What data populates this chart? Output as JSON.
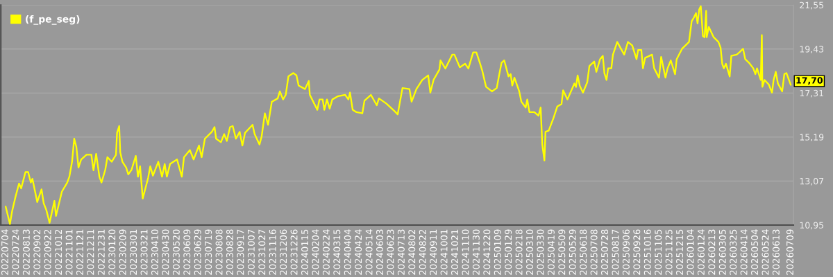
{
  "chart_data": {
    "type": "line",
    "x": [
      "2022-07-04",
      "2022-07-12",
      "2022-07-16",
      "2022-07-22",
      "2022-07-29",
      "2022-08-02",
      "2022-08-10",
      "2022-08-15",
      "2022-08-20",
      "2022-08-23",
      "2022-09-01",
      "2022-09-09",
      "2022-09-13",
      "2022-09-18",
      "2022-09-24",
      "2022-10-03",
      "2022-10-06",
      "2022-10-17",
      "2022-10-27",
      "2022-10-31",
      "2022-11-05",
      "2022-11-09",
      "2022-11-13",
      "2022-11-17",
      "2022-11-22",
      "2022-12-02",
      "2022-12-11",
      "2022-12-15",
      "2022-12-20",
      "2022-12-26",
      "2022-12-30",
      "2023-01-06",
      "2023-01-10",
      "2023-01-18",
      "2023-01-26",
      "2023-01-28",
      "2023-02-01",
      "2023-02-03",
      "2023-02-07",
      "2023-02-14",
      "2023-02-18",
      "2023-02-24",
      "2023-03-04",
      "2023-03-08",
      "2023-03-12",
      "2023-03-17",
      "2023-03-27",
      "2023-03-31",
      "2023-04-05",
      "2023-04-15",
      "2023-04-22",
      "2023-04-27",
      "2023-05-01",
      "2023-05-07",
      "2023-05-20",
      "2023-05-29",
      "2023-06-02",
      "2023-06-13",
      "2023-06-20",
      "2023-06-30",
      "2023-07-05",
      "2023-07-11",
      "2023-07-24",
      "2023-07-29",
      "2023-08-01",
      "2023-08-10",
      "2023-08-16",
      "2023-08-21",
      "2023-08-27",
      "2023-09-01",
      "2023-09-07",
      "2023-09-14",
      "2023-09-19",
      "2023-09-24",
      "2023-10-08",
      "2023-10-12",
      "2023-10-21",
      "2023-10-25",
      "2023-10-31",
      "2023-11-06",
      "2023-11-13",
      "2023-11-24",
      "2023-11-28",
      "2023-12-04",
      "2023-12-09",
      "2023-12-14",
      "2023-12-23",
      "2023-12-29",
      "2024-01-02",
      "2024-01-14",
      "2024-01-21",
      "2024-01-23",
      "2024-02-06",
      "2024-02-10",
      "2024-02-16",
      "2024-02-19",
      "2024-02-24",
      "2024-02-29",
      "2024-03-05",
      "2024-03-16",
      "2024-03-29",
      "2024-04-04",
      "2024-04-07",
      "2024-04-12",
      "2024-04-19",
      "2024-04-30",
      "2024-05-04",
      "2024-05-16",
      "2024-05-27",
      "2024-05-31",
      "2024-06-14",
      "2024-06-29",
      "2024-07-05",
      "2024-07-14",
      "2024-07-27",
      "2024-07-31",
      "2024-08-09",
      "2024-08-20",
      "2024-08-31",
      "2024-09-04",
      "2024-09-10",
      "2024-09-21",
      "2024-09-23",
      "2024-10-02",
      "2024-10-15",
      "2024-10-19",
      "2024-10-29",
      "2024-11-08",
      "2024-11-14",
      "2024-11-23",
      "2024-11-29",
      "2024-12-06",
      "2024-12-10",
      "2024-12-17",
      "2024-12-28",
      "2025-01-06",
      "2025-01-10",
      "2025-01-15",
      "2025-01-20",
      "2025-01-28",
      "2025-02-01",
      "2025-02-04",
      "2025-02-08",
      "2025-02-17",
      "2025-02-21",
      "2025-03-01",
      "2025-03-04",
      "2025-03-08",
      "2025-03-17",
      "2025-03-25",
      "2025-03-29",
      "2025-04-01",
      "2025-04-05",
      "2025-04-07",
      "2025-04-13",
      "2025-04-22",
      "2025-04-29",
      "2025-05-07",
      "2025-05-10",
      "2025-05-18",
      "2025-05-31",
      "2025-06-03",
      "2025-06-06",
      "2025-06-10",
      "2025-06-16",
      "2025-06-24",
      "2025-06-28",
      "2025-07-07",
      "2025-07-11",
      "2025-07-18",
      "2025-07-23",
      "2025-07-26",
      "2025-07-30",
      "2025-08-02",
      "2025-08-08",
      "2025-08-11",
      "2025-08-19",
      "2025-09-01",
      "2025-09-08",
      "2025-09-16",
      "2025-09-24",
      "2025-09-27",
      "2025-10-03",
      "2025-10-06",
      "2025-10-10",
      "2025-10-23",
      "2025-10-27",
      "2025-11-05",
      "2025-11-09",
      "2025-11-17",
      "2025-11-21",
      "2025-11-27",
      "2025-12-05",
      "2025-12-08",
      "2025-12-18",
      "2025-12-31",
      "2026-01-05",
      "2026-01-09",
      "2026-01-13",
      "2026-01-16",
      "2026-01-19",
      "2026-01-22",
      "2026-01-26",
      "2026-01-29",
      "2026-02-01",
      "2026-02-02",
      "2026-02-06",
      "2026-02-15",
      "2026-02-24",
      "2026-02-28",
      "2026-03-03",
      "2026-03-06",
      "2026-03-10",
      "2026-03-17",
      "2026-03-20",
      "2026-03-30",
      "2026-04-04",
      "2026-04-11",
      "2026-04-15",
      "2026-04-22",
      "2026-04-30",
      "2026-05-04",
      "2026-05-07",
      "2026-05-14",
      "2026-05-16",
      "2026-05-17",
      "2026-05-21",
      "2026-05-29",
      "2026-06-04",
      "2026-06-07",
      "2026-06-11",
      "2026-06-15",
      "2026-06-23",
      "2026-06-27",
      "2026-07-01",
      "2026-07-09"
    ],
    "series": [
      {
        "name": "(f_pe_seg)",
        "color": "#ffff00",
        "values": [
          11.84,
          11.0,
          11.61,
          12.27,
          12.95,
          12.72,
          13.5,
          13.5,
          13.0,
          13.18,
          12.06,
          12.67,
          12.0,
          11.67,
          11.06,
          12.11,
          11.39,
          12.56,
          13.0,
          13.28,
          14.0,
          15.11,
          14.72,
          13.72,
          14.11,
          14.34,
          14.34,
          13.59,
          14.38,
          13.28,
          13.0,
          13.61,
          14.22,
          14.0,
          14.33,
          15.39,
          15.72,
          14.45,
          14.0,
          13.72,
          13.39,
          13.61,
          14.28,
          13.28,
          13.78,
          12.23,
          13.22,
          13.78,
          13.33,
          14.0,
          13.28,
          13.89,
          13.28,
          13.89,
          14.11,
          13.28,
          14.22,
          14.56,
          14.11,
          14.78,
          14.22,
          15.11,
          15.44,
          15.67,
          15.11,
          14.94,
          15.33,
          15.0,
          15.67,
          15.72,
          15.11,
          15.44,
          14.78,
          15.39,
          15.78,
          15.33,
          14.83,
          15.22,
          16.33,
          15.78,
          16.89,
          17.05,
          17.39,
          17.0,
          17.22,
          18.11,
          18.27,
          18.16,
          17.67,
          17.5,
          17.89,
          17.22,
          16.5,
          17.0,
          17.0,
          16.5,
          17.0,
          16.56,
          17.0,
          17.16,
          17.22,
          17.0,
          17.33,
          16.5,
          16.39,
          16.33,
          16.94,
          17.22,
          16.72,
          17.05,
          16.8,
          16.44,
          16.28,
          17.55,
          17.5,
          16.89,
          17.5,
          17.94,
          18.16,
          17.33,
          17.94,
          18.44,
          18.88,
          18.49,
          19.16,
          19.16,
          18.55,
          18.72,
          18.49,
          19.27,
          19.27,
          18.72,
          18.38,
          17.61,
          17.39,
          17.55,
          18.11,
          18.77,
          18.88,
          18.11,
          18.22,
          17.67,
          18.05,
          17.39,
          16.89,
          16.61,
          17.0,
          16.39,
          16.39,
          16.22,
          16.61,
          14.84,
          14.06,
          15.44,
          15.5,
          16.11,
          16.66,
          16.78,
          17.44,
          17.0,
          17.77,
          17.6,
          18.16,
          17.66,
          17.33,
          17.83,
          18.61,
          18.83,
          18.33,
          18.94,
          19.1,
          18.27,
          17.94,
          18.5,
          18.5,
          19.16,
          19.77,
          19.16,
          19.77,
          19.6,
          18.94,
          19.38,
          19.38,
          18.5,
          19.0,
          19.16,
          18.5,
          18.05,
          19.05,
          18.05,
          18.5,
          18.88,
          18.22,
          18.94,
          19.44,
          19.77,
          20.77,
          20.94,
          21.16,
          20.66,
          21.33,
          21.49,
          20.05,
          20.0,
          21.27,
          20.0,
          20.49,
          20.0,
          19.77,
          19.49,
          18.72,
          18.5,
          18.72,
          18.11,
          19.1,
          19.16,
          19.27,
          19.44,
          18.94,
          18.77,
          18.5,
          18.22,
          18.5,
          17.94,
          20.1,
          17.61,
          17.94,
          17.72,
          17.33,
          17.94,
          18.33,
          17.77,
          17.39,
          18.22,
          18.27,
          17.7
        ]
      }
    ],
    "xlim": [
      "2022-06-25",
      "2026-07-14"
    ],
    "xticks": [
      {
        "value": "2022-07-04",
        "label": "20220704"
      },
      {
        "value": "2022-07-24",
        "label": "20220724"
      },
      {
        "value": "2022-08-13",
        "label": "20220813"
      },
      {
        "value": "2022-09-02",
        "label": "20220902"
      },
      {
        "value": "2022-09-22",
        "label": "20220922"
      },
      {
        "value": "2022-10-12",
        "label": "20221012"
      },
      {
        "value": "2022-11-01",
        "label": "20221101"
      },
      {
        "value": "2022-11-21",
        "label": "20221121"
      },
      {
        "value": "2022-12-11",
        "label": "20221211"
      },
      {
        "value": "2022-12-31",
        "label": "20221231"
      },
      {
        "value": "2023-01-20",
        "label": "20230120"
      },
      {
        "value": "2023-02-09",
        "label": "20230209"
      },
      {
        "value": "2023-03-01",
        "label": "20230301"
      },
      {
        "value": "2023-03-21",
        "label": "20230321"
      },
      {
        "value": "2023-04-10",
        "label": "20230410"
      },
      {
        "value": "2023-04-30",
        "label": "20230430"
      },
      {
        "value": "2023-05-20",
        "label": "20230520"
      },
      {
        "value": "2023-06-09",
        "label": "20230609"
      },
      {
        "value": "2023-06-29",
        "label": "20230629"
      },
      {
        "value": "2023-07-19",
        "label": "20230719"
      },
      {
        "value": "2023-08-08",
        "label": "20230808"
      },
      {
        "value": "2023-08-28",
        "label": "20230828"
      },
      {
        "value": "2023-09-17",
        "label": "20230917"
      },
      {
        "value": "2023-10-07",
        "label": "20231007"
      },
      {
        "value": "2023-10-27",
        "label": "20231027"
      },
      {
        "value": "2023-11-16",
        "label": "20231116"
      },
      {
        "value": "2023-12-06",
        "label": "20231206"
      },
      {
        "value": "2023-12-26",
        "label": "20231226"
      },
      {
        "value": "2024-01-15",
        "label": "20240115"
      },
      {
        "value": "2024-02-04",
        "label": "20240204"
      },
      {
        "value": "2024-02-24",
        "label": "20240224"
      },
      {
        "value": "2024-03-15",
        "label": "20240315"
      },
      {
        "value": "2024-04-04",
        "label": "20240404"
      },
      {
        "value": "2024-04-24",
        "label": "20240424"
      },
      {
        "value": "2024-05-14",
        "label": "20240514"
      },
      {
        "value": "2024-06-03",
        "label": "20240603"
      },
      {
        "value": "2024-06-23",
        "label": "20240623"
      },
      {
        "value": "2024-07-13",
        "label": "20240713"
      },
      {
        "value": "2024-08-02",
        "label": "20240802"
      },
      {
        "value": "2024-08-22",
        "label": "20240822"
      },
      {
        "value": "2024-09-11",
        "label": "20240911"
      },
      {
        "value": "2024-10-01",
        "label": "20241001"
      },
      {
        "value": "2024-10-21",
        "label": "20241021"
      },
      {
        "value": "2024-11-10",
        "label": "20241110"
      },
      {
        "value": "2024-11-30",
        "label": "20241130"
      },
      {
        "value": "2024-12-20",
        "label": "20241220"
      },
      {
        "value": "2025-01-09",
        "label": "20250109"
      },
      {
        "value": "2025-01-29",
        "label": "20250129"
      },
      {
        "value": "2025-02-18",
        "label": "20250218"
      },
      {
        "value": "2025-03-10",
        "label": "20250310"
      },
      {
        "value": "2025-03-30",
        "label": "20250330"
      },
      {
        "value": "2025-04-19",
        "label": "20250419"
      },
      {
        "value": "2025-05-09",
        "label": "20250509"
      },
      {
        "value": "2025-05-29",
        "label": "20250529"
      },
      {
        "value": "2025-06-18",
        "label": "20250618"
      },
      {
        "value": "2025-07-08",
        "label": "20250708"
      },
      {
        "value": "2025-07-28",
        "label": "20250728"
      },
      {
        "value": "2025-08-17",
        "label": "20250817"
      },
      {
        "value": "2025-09-06",
        "label": "20250906"
      },
      {
        "value": "2025-09-26",
        "label": "20250926"
      },
      {
        "value": "2025-10-16",
        "label": "20251016"
      },
      {
        "value": "2025-11-05",
        "label": "20251105"
      },
      {
        "value": "2025-11-25",
        "label": "20251125"
      },
      {
        "value": "2025-12-15",
        "label": "20251215"
      },
      {
        "value": "2026-01-04",
        "label": "20260104"
      },
      {
        "value": "2026-01-24",
        "label": "20260124"
      },
      {
        "value": "2026-02-13",
        "label": "20260213"
      },
      {
        "value": "2026-03-05",
        "label": "20260305"
      },
      {
        "value": "2026-03-25",
        "label": "20260325"
      },
      {
        "value": "2026-04-14",
        "label": "20260414"
      },
      {
        "value": "2026-05-04",
        "label": "20260504"
      },
      {
        "value": "2026-05-24",
        "label": "20260524"
      },
      {
        "value": "2026-06-13",
        "label": "20260613"
      },
      {
        "value": "2026-07-09",
        "label": "20260709"
      }
    ],
    "ylim": [
      10.95,
      21.55
    ],
    "yticks": [
      {
        "value": 10.95,
        "label": "10,95"
      },
      {
        "value": 13.07,
        "label": "13,07"
      },
      {
        "value": 15.19,
        "label": "15,19"
      },
      {
        "value": 17.31,
        "label": "17,31"
      },
      {
        "value": 19.43,
        "label": "19,43"
      },
      {
        "value": 21.55,
        "label": "21,55"
      }
    ],
    "grid": "y",
    "legend": "top left",
    "annotations": [
      {
        "text": "17,70",
        "x": "2026-07-09",
        "y": 17.7
      }
    ]
  }
}
